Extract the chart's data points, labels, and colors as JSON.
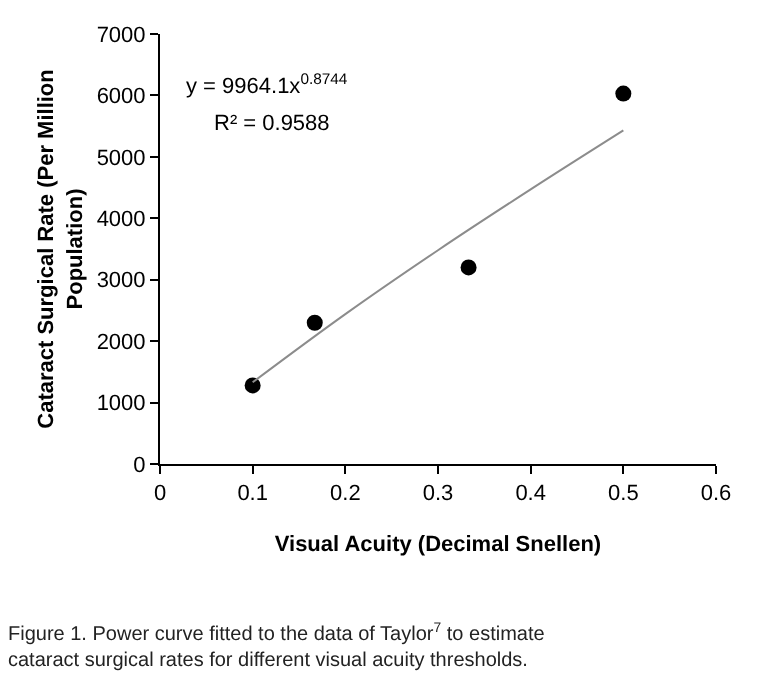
{
  "chart_data": {
    "type": "scatter",
    "xlabel": "Visual Acuity (Decimal Snellen)",
    "ylabel": "Cataract Surgical Rate (Per Million Population)",
    "xlim": [
      0,
      0.6
    ],
    "xticks": [
      0,
      0.1,
      0.2,
      0.3,
      0.4,
      0.5,
      0.6
    ],
    "ylim": [
      0,
      7000
    ],
    "yticks": [
      0,
      1000,
      2000,
      3000,
      4000,
      5000,
      6000,
      7000
    ],
    "marker": "circle",
    "series": [
      {
        "color": "#000000",
        "x": [
          0.1,
          0.167,
          0.333,
          0.5
        ],
        "values": [
          1280,
          2300,
          3200,
          6030
        ]
      },
      {
        "type": "line",
        "color": "#8c8c8c",
        "marker": "none",
        "line_style": "solid",
        "x": [
          0.1,
          0.2,
          0.3,
          0.4,
          0.5
        ],
        "values": [
          1330,
          2440,
          3480,
          4470,
          5430
        ]
      }
    ],
    "annotations": [
      "y = 9964.1x$^{0.8744}$",
      "R² = 0.9588",
      "Figure 1. Power curve fitted to the data of Taylor$^{7}$ to estimate cataract surgical rates for different visual acuity thresholds."
    ]
  }
}
